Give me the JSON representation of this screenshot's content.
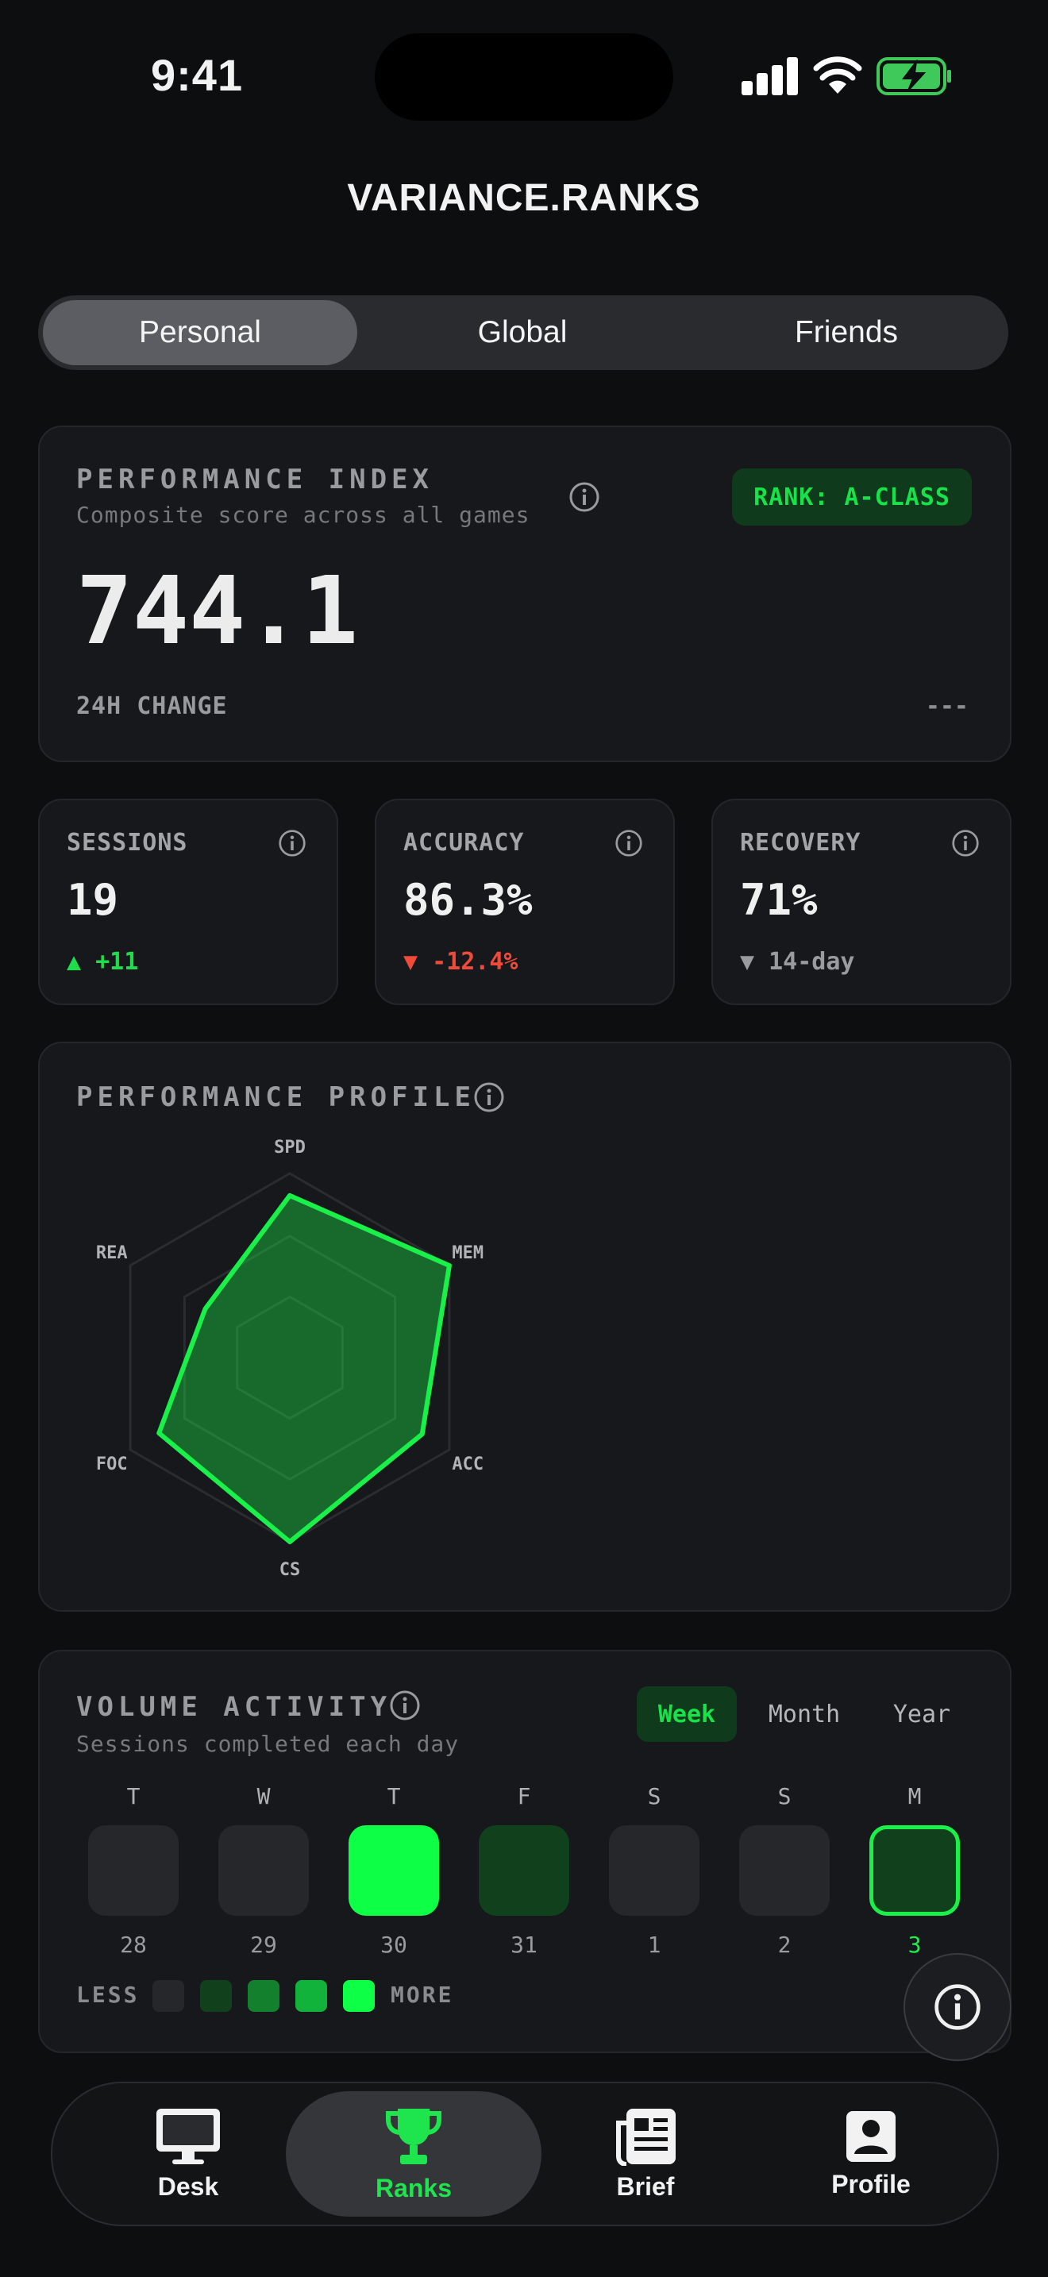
{
  "status": {
    "time": "9:41"
  },
  "app": {
    "title": "VARIANCE.RANKS"
  },
  "segments": [
    "Personal",
    "Global",
    "Friends"
  ],
  "performance": {
    "title": "PERFORMANCE INDEX",
    "subtitle": "Composite score across all games",
    "rank_badge": "RANK: A-CLASS",
    "value": "744.1",
    "change_label": "24H CHANGE",
    "change_value": "---"
  },
  "stats": [
    {
      "title": "SESSIONS",
      "value": "19",
      "delta": "▲ +11",
      "delta_color": "#1fdc4c"
    },
    {
      "title": "ACCURACY",
      "value": "86.3%",
      "delta": "▼ -12.4%",
      "delta_color": "#f04a3a"
    },
    {
      "title": "RECOVERY",
      "value": "71%",
      "delta": "▼ 14-day",
      "delta_color": "#9a9ba0"
    }
  ],
  "profile": {
    "title": "PERFORMANCE PROFILE",
    "axes": [
      "SPD",
      "MEM",
      "ACC",
      "CS",
      "FOC",
      "REA"
    ],
    "values": [
      0.88,
      1.0,
      0.83,
      1.0,
      0.82,
      0.53
    ],
    "color": "#19f049"
  },
  "volume": {
    "title": "VOLUME ACTIVITY",
    "subtitle": "Sessions completed each day",
    "tabs": [
      "Week",
      "Month",
      "Year"
    ],
    "days": [
      {
        "letter": "T",
        "num": "28",
        "level": 0
      },
      {
        "letter": "W",
        "num": "29",
        "level": 0
      },
      {
        "letter": "T",
        "num": "30",
        "level": 4
      },
      {
        "letter": "F",
        "num": "31",
        "level": 1
      },
      {
        "letter": "S",
        "num": "1",
        "level": 0
      },
      {
        "letter": "S",
        "num": "2",
        "level": 0
      },
      {
        "letter": "M",
        "num": "3",
        "level": 1,
        "today": true
      }
    ],
    "legend_less": "LESS",
    "legend_more": "MORE",
    "level_colors": [
      "#26272b",
      "#11401c",
      "#13802e",
      "#12b33a",
      "#0dff46"
    ]
  },
  "nav": [
    {
      "label": "Desk",
      "icon": "desktop-icon"
    },
    {
      "label": "Ranks",
      "icon": "trophy-icon",
      "active": true
    },
    {
      "label": "Brief",
      "icon": "newspaper-icon"
    },
    {
      "label": "Profile",
      "icon": "profile-icon"
    }
  ],
  "colors": {
    "accent": "#19f049",
    "background": "#0d0e10",
    "card": "#17181b"
  }
}
